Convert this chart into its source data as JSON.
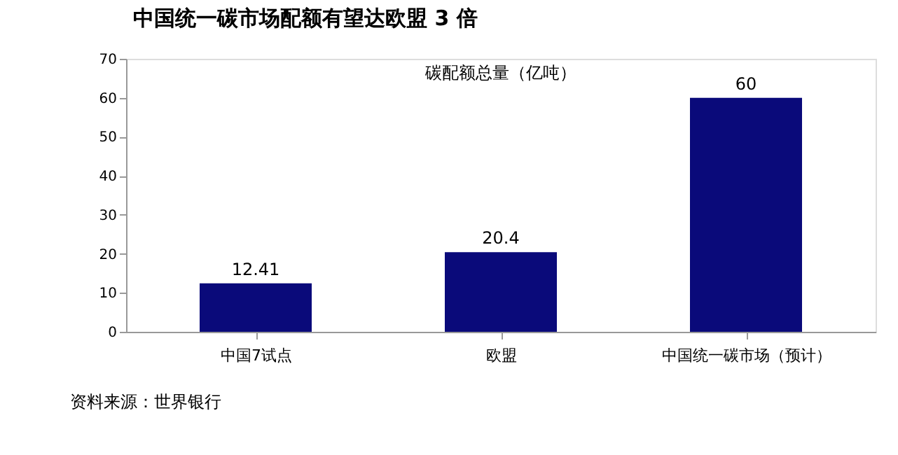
{
  "chart_data": {
    "type": "bar",
    "title": "中国统一碳市场配额有望达欧盟 3 倍",
    "categories": [
      "中国7试点",
      "欧盟",
      "中国统一碳市场（预计）"
    ],
    "series": [
      {
        "name": "碳配额总量（亿吨）",
        "color": "#0a0a7a",
        "values": [
          12.41,
          20.4,
          60
        ]
      }
    ],
    "ylim": [
      0,
      70
    ],
    "yticks": [
      0,
      10,
      20,
      30,
      40,
      50,
      60,
      70
    ],
    "grid": false,
    "data_labels": true,
    "legend": "top",
    "annotations": [
      "资料来源：世界银行"
    ]
  }
}
